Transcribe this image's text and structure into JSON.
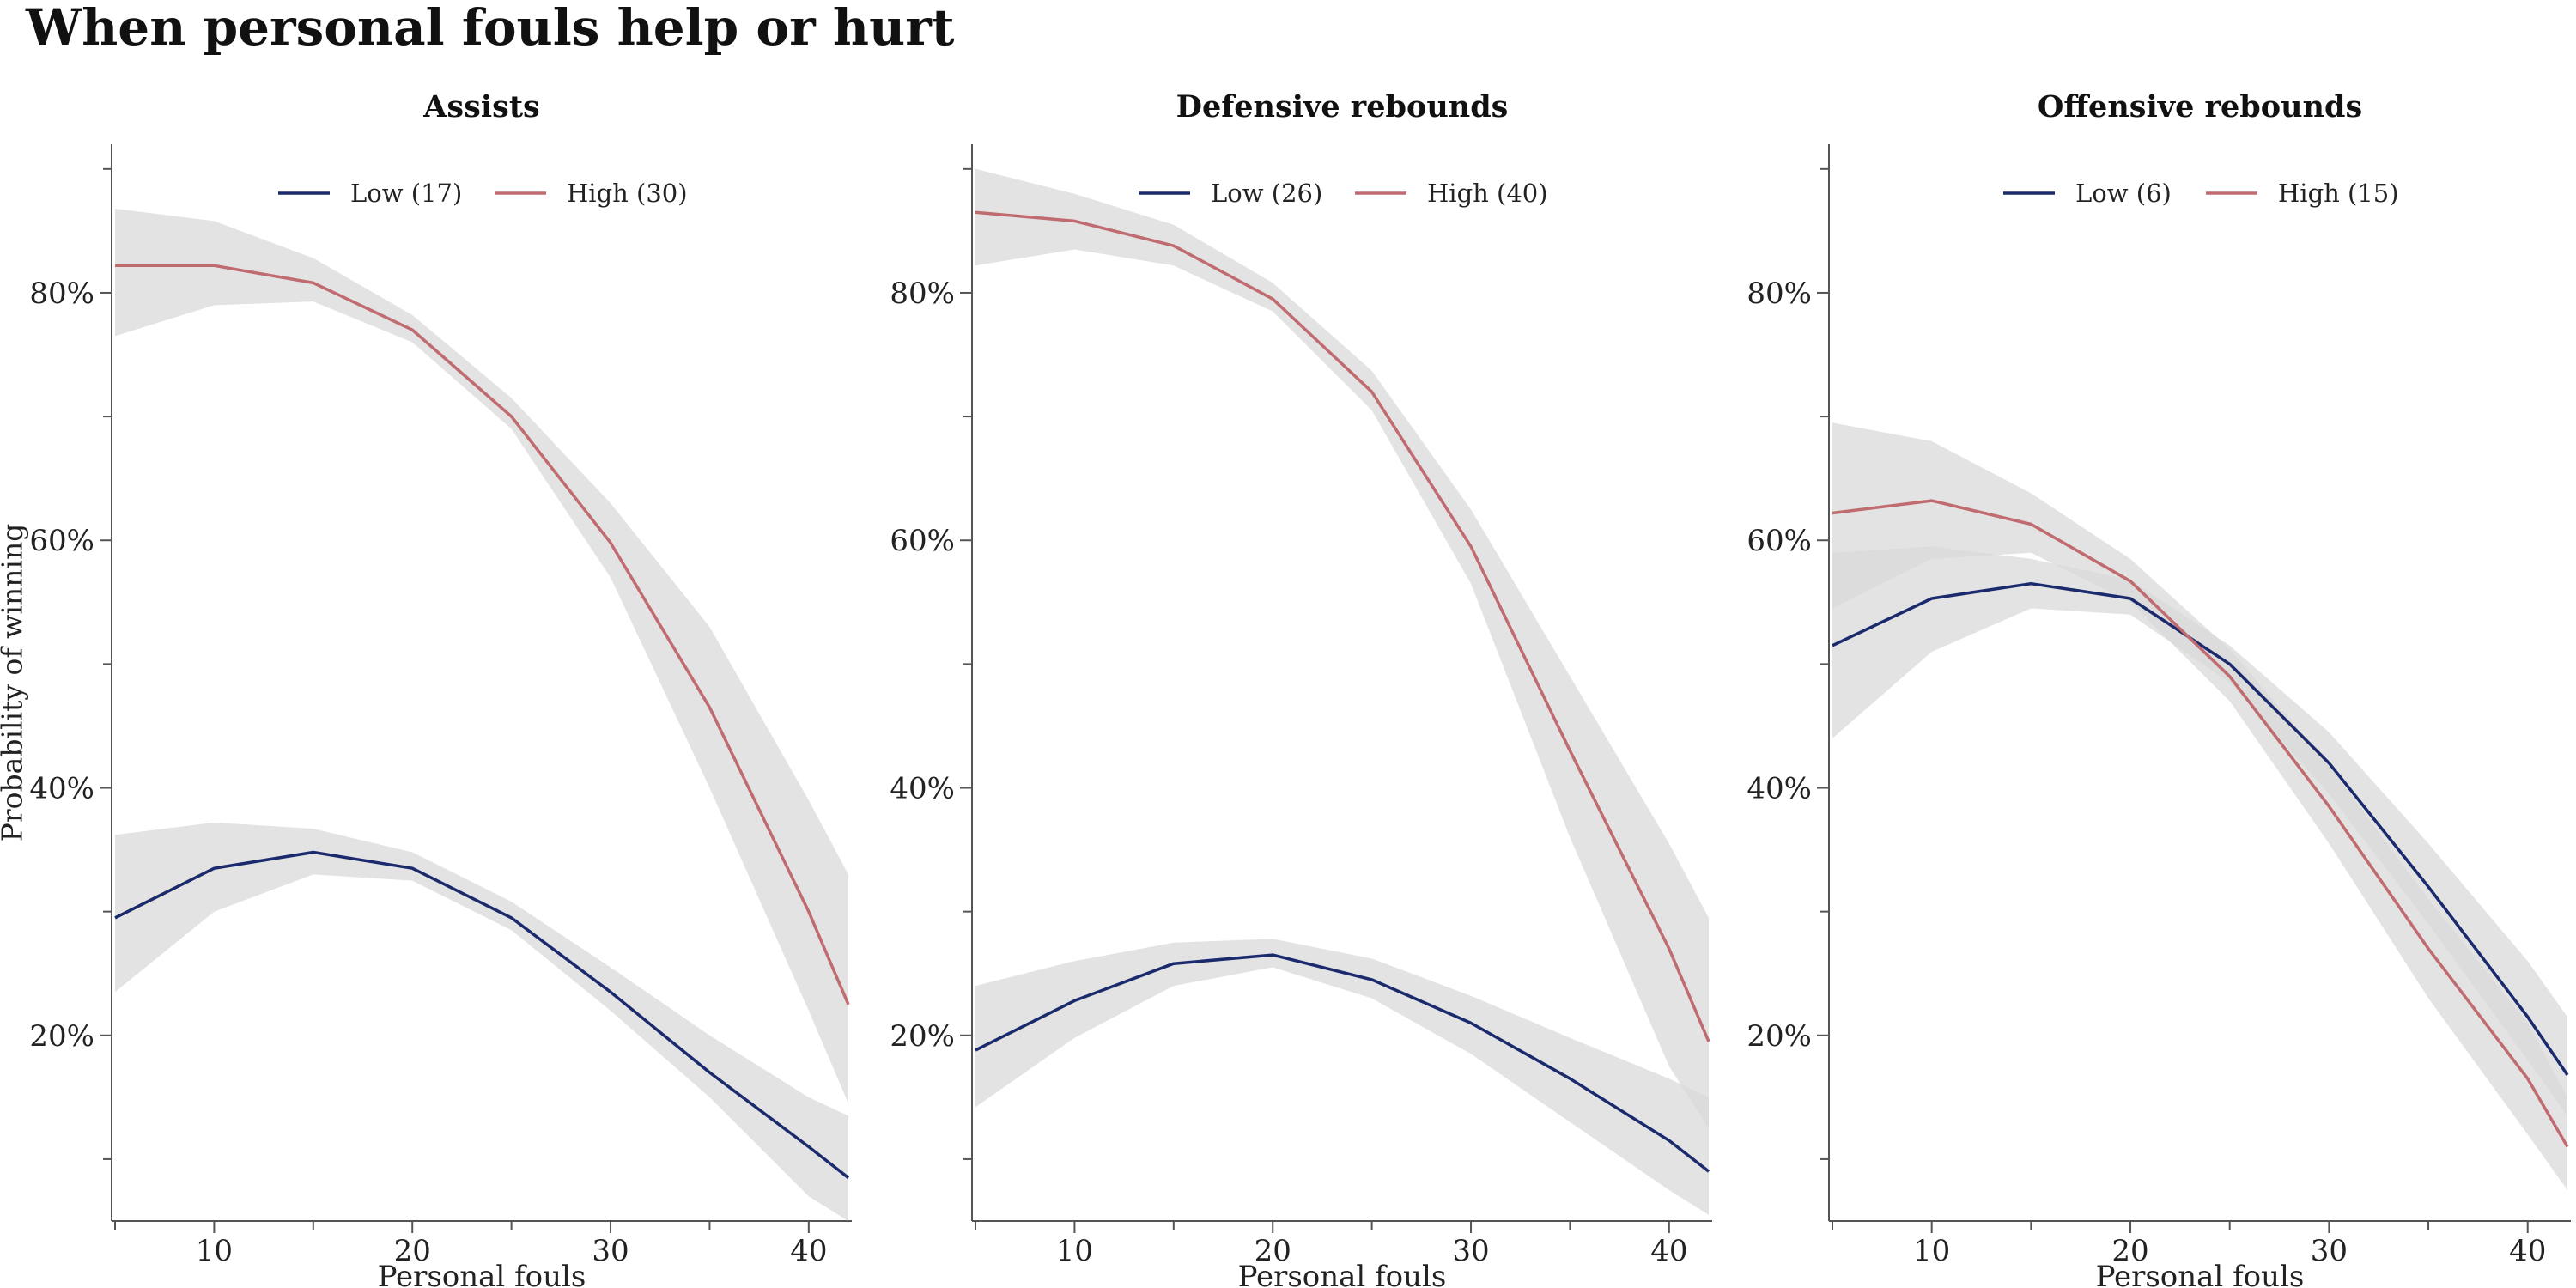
{
  "chart_data": {
    "type": "line",
    "title": "When personal fouls help or hurt",
    "ylabel": "Probability of winning",
    "y_ticks": [
      "20%",
      "40%",
      "60%",
      "80%"
    ],
    "x_ticks": [
      "10",
      "20",
      "30",
      "40"
    ],
    "ylim": [
      0.05,
      0.92
    ],
    "xlim": [
      5,
      42
    ],
    "band_color": "#d9d9d9",
    "panels": [
      {
        "title": "Assists",
        "xlabel": "Personal fouls",
        "legend_position": "top-center",
        "x": [
          5,
          10,
          15,
          20,
          25,
          30,
          35,
          40,
          42
        ],
        "series": [
          {
            "name": "Low (17)",
            "color": "#1a2a6c",
            "values": [
              0.295,
              0.335,
              0.348,
              0.335,
              0.295,
              0.235,
              0.17,
              0.11,
              0.085
            ],
            "lower": [
              0.235,
              0.3,
              0.33,
              0.325,
              0.285,
              0.22,
              0.15,
              0.07,
              0.05
            ],
            "upper": [
              0.362,
              0.372,
              0.367,
              0.348,
              0.308,
              0.255,
              0.2,
              0.15,
              0.135
            ]
          },
          {
            "name": "High (30)",
            "color": "#c06b70",
            "values": [
              0.822,
              0.822,
              0.808,
              0.77,
              0.7,
              0.598,
              0.465,
              0.3,
              0.225
            ],
            "lower": [
              0.765,
              0.79,
              0.793,
              0.76,
              0.69,
              0.57,
              0.4,
              0.22,
              0.145
            ],
            "upper": [
              0.868,
              0.858,
              0.828,
              0.782,
              0.715,
              0.63,
              0.53,
              0.39,
              0.33
            ]
          }
        ]
      },
      {
        "title": "Defensive rebounds",
        "xlabel": "Personal fouls",
        "legend_position": "top-center",
        "x": [
          5,
          10,
          15,
          20,
          25,
          30,
          35,
          40,
          42
        ],
        "series": [
          {
            "name": "Low (26)",
            "color": "#1a2a6c",
            "values": [
              0.188,
              0.228,
              0.258,
              0.265,
              0.245,
              0.21,
              0.165,
              0.115,
              0.09
            ],
            "lower": [
              0.142,
              0.198,
              0.24,
              0.255,
              0.23,
              0.185,
              0.13,
              0.075,
              0.055
            ],
            "upper": [
              0.24,
              0.26,
              0.275,
              0.278,
              0.262,
              0.232,
              0.198,
              0.165,
              0.15
            ]
          },
          {
            "name": "High (40)",
            "color": "#c06b70",
            "values": [
              0.865,
              0.858,
              0.838,
              0.795,
              0.72,
              0.595,
              0.43,
              0.27,
              0.195
            ],
            "lower": [
              0.822,
              0.835,
              0.822,
              0.785,
              0.705,
              0.565,
              0.36,
              0.175,
              0.125
            ],
            "upper": [
              0.9,
              0.88,
              0.855,
              0.808,
              0.737,
              0.625,
              0.49,
              0.355,
              0.295
            ]
          }
        ]
      },
      {
        "title": "Offensive rebounds",
        "xlabel": "Personal fouls",
        "legend_position": "top-center",
        "x": [
          5,
          10,
          15,
          20,
          25,
          30,
          35,
          40,
          42
        ],
        "series": [
          {
            "name": "Low (6)",
            "color": "#1a2a6c",
            "values": [
              0.515,
              0.553,
              0.565,
              0.553,
              0.5,
              0.42,
              0.32,
              0.215,
              0.168
            ],
            "lower": [
              0.44,
              0.51,
              0.545,
              0.54,
              0.485,
              0.395,
              0.29,
              0.18,
              0.135
            ],
            "upper": [
              0.59,
              0.595,
              0.585,
              0.568,
              0.515,
              0.445,
              0.355,
              0.26,
              0.215
            ]
          },
          {
            "name": "High (15)",
            "color": "#c06b70",
            "values": [
              0.622,
              0.632,
              0.613,
              0.567,
              0.49,
              0.385,
              0.27,
              0.165,
              0.11
            ],
            "lower": [
              0.545,
              0.585,
              0.59,
              0.55,
              0.47,
              0.355,
              0.23,
              0.12,
              0.075
            ],
            "upper": [
              0.695,
              0.68,
              0.638,
              0.585,
              0.512,
              0.418,
              0.31,
              0.21,
              0.15
            ]
          }
        ]
      }
    ]
  }
}
